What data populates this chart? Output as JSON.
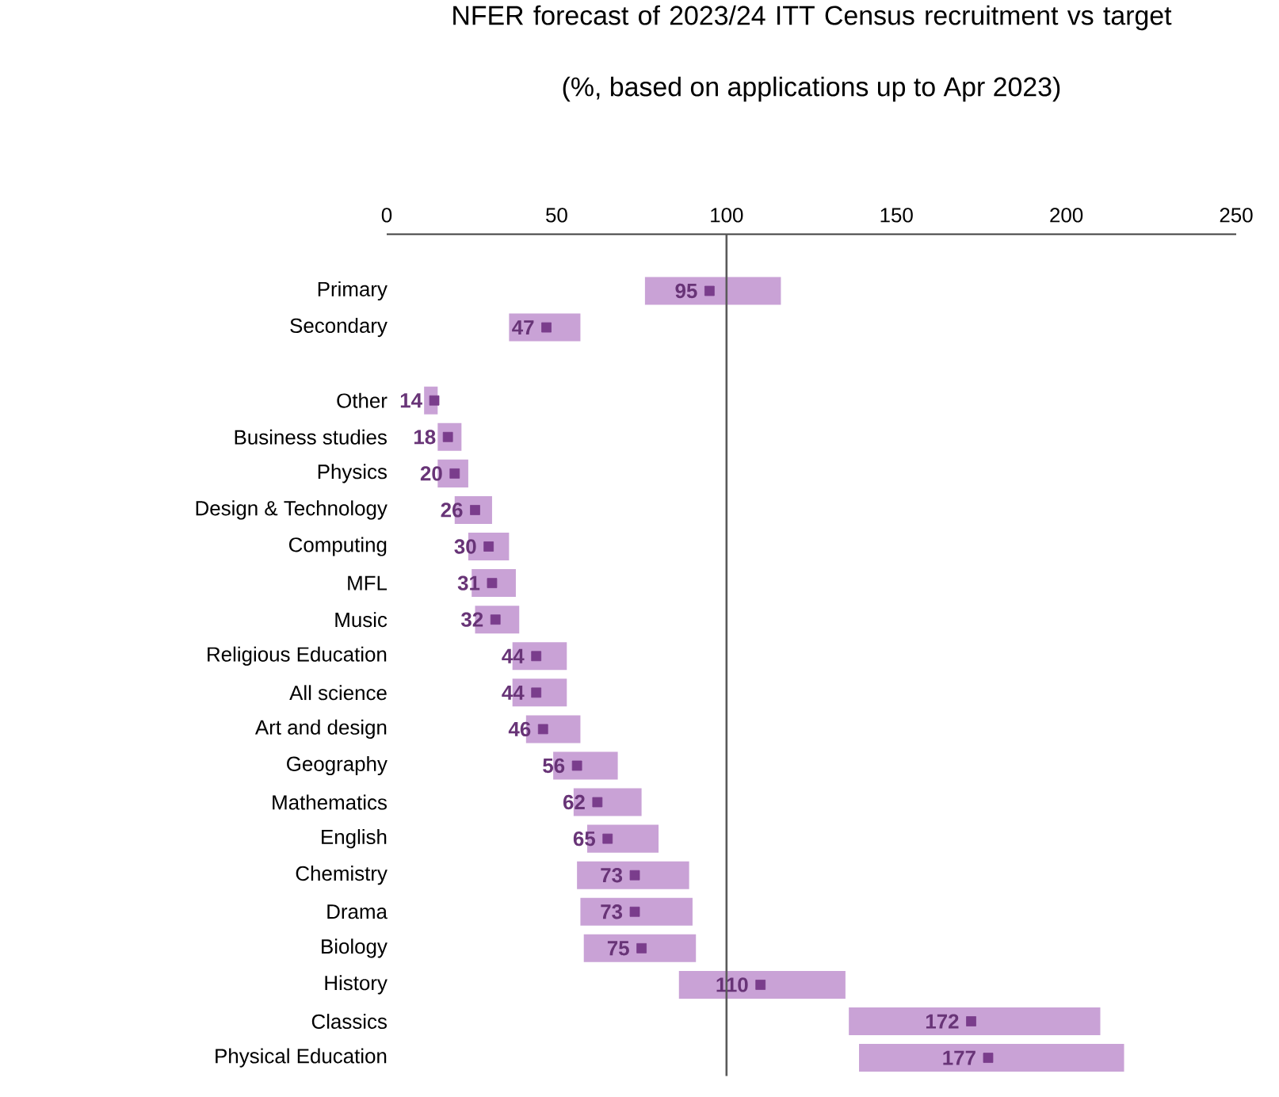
{
  "chart_data": {
    "type": "bar",
    "orientation": "horizontal",
    "title": "NFER forecast of 2023/24 ITT Census recruitment vs target",
    "subtitle": "(%, based on applications up to Apr 2023)",
    "categories": [
      "Primary",
      "Secondary",
      null,
      "Other",
      "Business studies",
      "Physics",
      "Design & Technology",
      "Computing",
      "MFL",
      "Music",
      "Religious Education",
      "All science",
      "Art and design",
      "Geography",
      "Mathematics",
      "English",
      "Chemistry",
      "Drama",
      "Biology",
      "History",
      "Classics",
      "Physical Education"
    ],
    "series": [
      {
        "color": "#c9a2d6",
        "base": [
          76,
          36,
          null,
          11,
          15,
          15,
          20,
          24,
          25,
          26,
          37,
          37,
          41,
          49,
          55,
          59,
          56,
          57,
          58,
          86,
          136,
          139
        ],
        "values": [
          40,
          21,
          null,
          4,
          7,
          9,
          11,
          12,
          13,
          13,
          16,
          16,
          16,
          19,
          20,
          21,
          33,
          33,
          33,
          49,
          74,
          78
        ]
      },
      {
        "type": "scatter",
        "color": "#7a3d8c",
        "marker": "square",
        "values": [
          95,
          47,
          null,
          14,
          18,
          20,
          26,
          30,
          31,
          32,
          44,
          44,
          46,
          56,
          62,
          65,
          73,
          73,
          75,
          110,
          172,
          177
        ],
        "value_labels": [
          "95",
          "47",
          null,
          "14",
          "18",
          "20",
          "26",
          "30",
          "31",
          "32",
          "44",
          "44",
          "46",
          "56",
          "62",
          "65",
          "73",
          "73",
          "75",
          "110",
          "172",
          "177"
        ]
      }
    ],
    "xlim": [
      0,
      250
    ],
    "xticks": [
      0,
      50,
      100,
      150,
      200,
      250
    ],
    "ref_lines": [
      {
        "axis": "x",
        "value": 100,
        "color": "#5a5a5a"
      }
    ],
    "grid": false
  }
}
